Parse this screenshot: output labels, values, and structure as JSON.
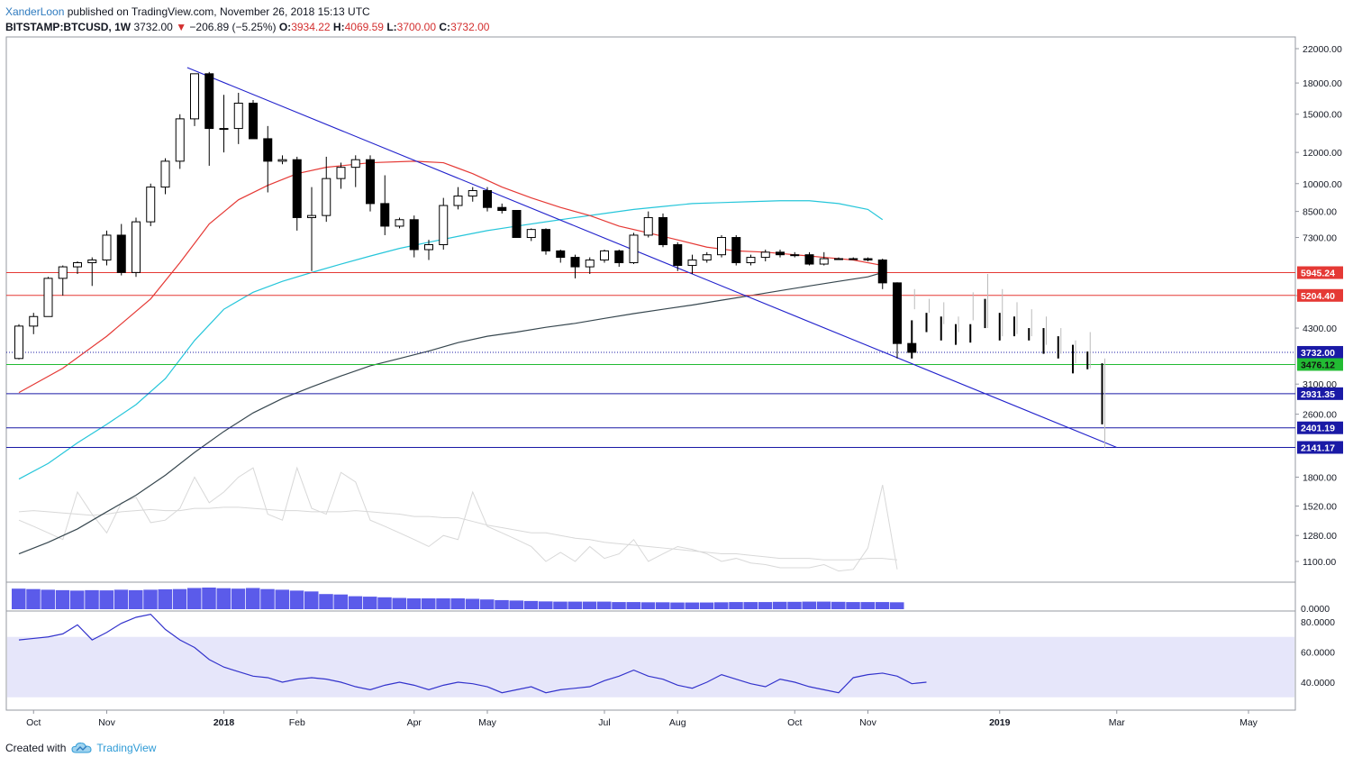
{
  "header": {
    "author": "XanderLoon",
    "published": " published on TradingView.com, November 26, 2018 15:13 UTC",
    "symbol": "BITSTAMP:BTCUSD, 1W",
    "last": "3732.00",
    "change": "−206.89 (−5.25%)",
    "o_label": "O:",
    "o_value": "3934.22",
    "h_label": "H:",
    "h_value": "4069.59",
    "l_label": "L:",
    "l_value": "3700.00",
    "c_label": "C:",
    "c_value": "3732.00"
  },
  "footer": {
    "created_with": "Created with",
    "brand": "TradingView"
  },
  "colors": {
    "down": "#000000",
    "up": "#ffffff",
    "ma_red": "#e53935",
    "ma_cyan": "#26c6da",
    "ma_dark": "#37474f",
    "trend": "#2222cc",
    "level_red": "#e53935",
    "level_green": "#22bb33",
    "level_blue": "#1a1aa6",
    "volume": "#5b5bea",
    "rsi_band": "#e6e6fa",
    "rsi_line": "#3333cc",
    "projection": "#bbbbbb"
  },
  "chart_data": {
    "type": "candlestick",
    "scale": "log",
    "price_ticks": [
      1100,
      1280,
      1520,
      1800,
      2600,
      3100,
      4300,
      5200,
      7300,
      8500,
      10000,
      12000,
      15000,
      18000,
      22000
    ],
    "price_tick_labels": [
      "1100.00",
      "1280.00",
      "1520.00",
      "1800.00",
      "2600.00",
      "3100.00",
      "4300.00",
      "5200.00",
      "7300.00",
      "8500.00",
      "10000.00",
      "12000.00",
      "15000.00",
      "18000.00",
      "22000.00"
    ],
    "x_ticks": [
      {
        "label": "Oct",
        "week": 1,
        "bold": false
      },
      {
        "label": "Nov",
        "week": 6,
        "bold": false
      },
      {
        "label": "2018",
        "week": 14,
        "bold": true
      },
      {
        "label": "Feb",
        "week": 19,
        "bold": false
      },
      {
        "label": "Apr",
        "week": 27,
        "bold": false
      },
      {
        "label": "May",
        "week": 32,
        "bold": false
      },
      {
        "label": "Jul",
        "week": 40,
        "bold": false
      },
      {
        "label": "Aug",
        "week": 45,
        "bold": false
      },
      {
        "label": "Oct",
        "week": 53,
        "bold": false
      },
      {
        "label": "Nov",
        "week": 58,
        "bold": false
      },
      {
        "label": "2019",
        "week": 67,
        "bold": true
      },
      {
        "label": "Mar",
        "week": 75,
        "bold": false
      },
      {
        "label": "May",
        "week": 84,
        "bold": false
      }
    ],
    "candles": [
      [
        3600,
        4400,
        3580,
        4350
      ],
      [
        4350,
        4700,
        4150,
        4600
      ],
      [
        4600,
        5800,
        4600,
        5750
      ],
      [
        5750,
        6200,
        5200,
        6150
      ],
      [
        6150,
        6350,
        5900,
        6300
      ],
      [
        6300,
        6500,
        5500,
        6400
      ],
      [
        6400,
        7600,
        6200,
        7400
      ],
      [
        7400,
        7900,
        5850,
        5950
      ],
      [
        5950,
        8200,
        5800,
        8000
      ],
      [
        8000,
        10000,
        7800,
        9800
      ],
      [
        9800,
        11600,
        9400,
        11400
      ],
      [
        11400,
        15000,
        10900,
        14600
      ],
      [
        14600,
        19000,
        14000,
        19000
      ],
      [
        19000,
        19200,
        11100,
        13800
      ],
      [
        13800,
        16800,
        12000,
        13800
      ],
      [
        13800,
        17000,
        12600,
        16000
      ],
      [
        16000,
        16300,
        13000,
        13000
      ],
      [
        13000,
        14000,
        9500,
        11400
      ],
      [
        11400,
        11800,
        11200,
        11500
      ],
      [
        11500,
        11700,
        7600,
        8200
      ],
      [
        8200,
        9800,
        6000,
        8300
      ],
      [
        8300,
        11700,
        8000,
        10300
      ],
      [
        10300,
        11300,
        9700,
        11000
      ],
      [
        11000,
        11800,
        9800,
        11500
      ],
      [
        11500,
        11800,
        8500,
        8900
      ],
      [
        8900,
        10500,
        7400,
        7800
      ],
      [
        7800,
        8200,
        7700,
        8100
      ],
      [
        8100,
        8300,
        6500,
        6800
      ],
      [
        6800,
        7200,
        6400,
        7000
      ],
      [
        7000,
        9200,
        6800,
        8800
      ],
      [
        8800,
        9800,
        8600,
        9300
      ],
      [
        9300,
        9800,
        9000,
        9600
      ],
      [
        9600,
        9800,
        8500,
        8700
      ],
      [
        8700,
        8900,
        8400,
        8550
      ],
      [
        8550,
        8550,
        7300,
        7300
      ],
      [
        7300,
        7700,
        7150,
        7650
      ],
      [
        7650,
        7700,
        6600,
        6750
      ],
      [
        6750,
        6800,
        6300,
        6500
      ],
      [
        6500,
        6600,
        5750,
        6150
      ],
      [
        6150,
        6500,
        5900,
        6400
      ],
      [
        6400,
        6800,
        6300,
        6750
      ],
      [
        6750,
        6800,
        6150,
        6300
      ],
      [
        6300,
        7500,
        6250,
        7400
      ],
      [
        7400,
        8500,
        7300,
        8200
      ],
      [
        8200,
        8400,
        6900,
        7000
      ],
      [
        7000,
        7100,
        6000,
        6200
      ],
      [
        6200,
        6600,
        5900,
        6400
      ],
      [
        6400,
        6700,
        6300,
        6600
      ],
      [
        6600,
        7400,
        6500,
        7300
      ],
      [
        7300,
        7400,
        6200,
        6300
      ],
      [
        6300,
        6600,
        6200,
        6500
      ],
      [
        6500,
        6800,
        6350,
        6700
      ],
      [
        6700,
        6800,
        6500,
        6600
      ],
      [
        6600,
        6700,
        6500,
        6600
      ],
      [
        6600,
        6700,
        6200,
        6250
      ],
      [
        6250,
        6700,
        6200,
        6450
      ],
      [
        6450,
        6500,
        6400,
        6450
      ],
      [
        6450,
        6500,
        6400,
        6450
      ],
      [
        6450,
        6500,
        6350,
        6400
      ],
      [
        6400,
        6450,
        5400,
        5600
      ],
      [
        5600,
        5620,
        3600,
        3930
      ],
      [
        3930,
        4070,
        3700,
        3732
      ]
    ],
    "projection": [
      [
        4800,
        5400
      ],
      [
        4700,
        5100
      ],
      [
        4400,
        5000
      ],
      [
        4200,
        4600
      ],
      [
        4500,
        5300
      ],
      [
        4300,
        5900
      ],
      [
        4100,
        5400
      ],
      [
        4150,
        5000
      ],
      [
        4100,
        4800
      ],
      [
        3900,
        4600
      ],
      [
        3700,
        4300
      ],
      [
        3500,
        4000
      ],
      [
        3400,
        4200
      ],
      [
        2140,
        3600
      ]
    ],
    "projection_bold": [
      [
        3600,
        4500
      ],
      [
        4200,
        4700
      ],
      [
        4000,
        4600
      ],
      [
        3900,
        4400
      ],
      [
        3950,
        4400
      ],
      [
        4300,
        5100
      ],
      [
        4000,
        4700
      ],
      [
        4100,
        4600
      ],
      [
        4000,
        4300
      ],
      [
        3700,
        4300
      ],
      [
        3600,
        4100
      ],
      [
        3300,
        3900
      ],
      [
        3380,
        3750
      ],
      [
        2450,
        3500
      ]
    ],
    "ma_red": [
      [
        0,
        2950
      ],
      [
        3,
        3400
      ],
      [
        6,
        4100
      ],
      [
        9,
        5100
      ],
      [
        11,
        6300
      ],
      [
        13,
        7900
      ],
      [
        15,
        9100
      ],
      [
        17,
        9900
      ],
      [
        19,
        10600
      ],
      [
        21,
        11000
      ],
      [
        24,
        11300
      ],
      [
        27,
        11400
      ],
      [
        29,
        11300
      ],
      [
        31,
        10600
      ],
      [
        33,
        9800
      ],
      [
        35,
        9200
      ],
      [
        37,
        8700
      ],
      [
        39,
        8300
      ],
      [
        41,
        7800
      ],
      [
        43,
        7500
      ],
      [
        45,
        7200
      ],
      [
        47,
        6900
      ],
      [
        49,
        6750
      ],
      [
        51,
        6700
      ],
      [
        53,
        6600
      ],
      [
        55,
        6500
      ],
      [
        57,
        6400
      ],
      [
        59,
        6200
      ]
    ],
    "ma_cyan": [
      [
        0,
        1780
      ],
      [
        2,
        1950
      ],
      [
        4,
        2200
      ],
      [
        6,
        2450
      ],
      [
        8,
        2750
      ],
      [
        10,
        3200
      ],
      [
        12,
        4000
      ],
      [
        14,
        4800
      ],
      [
        16,
        5300
      ],
      [
        18,
        5650
      ],
      [
        20,
        5950
      ],
      [
        22,
        6250
      ],
      [
        24,
        6550
      ],
      [
        26,
        6850
      ],
      [
        28,
        7100
      ],
      [
        30,
        7350
      ],
      [
        32,
        7600
      ],
      [
        34,
        7800
      ],
      [
        36,
        8000
      ],
      [
        38,
        8200
      ],
      [
        40,
        8400
      ],
      [
        42,
        8600
      ],
      [
        44,
        8750
      ],
      [
        46,
        8900
      ],
      [
        48,
        8950
      ],
      [
        50,
        9000
      ],
      [
        52,
        9050
      ],
      [
        54,
        9050
      ],
      [
        56,
        8900
      ],
      [
        58,
        8600
      ],
      [
        59,
        8100
      ]
    ],
    "ma_dark": [
      [
        0,
        1150
      ],
      [
        2,
        1230
      ],
      [
        4,
        1330
      ],
      [
        6,
        1470
      ],
      [
        8,
        1620
      ],
      [
        10,
        1820
      ],
      [
        12,
        2080
      ],
      [
        14,
        2350
      ],
      [
        16,
        2620
      ],
      [
        18,
        2850
      ],
      [
        20,
        3050
      ],
      [
        22,
        3250
      ],
      [
        24,
        3450
      ],
      [
        26,
        3600
      ],
      [
        28,
        3760
      ],
      [
        30,
        3950
      ],
      [
        32,
        4100
      ],
      [
        34,
        4200
      ],
      [
        36,
        4320
      ],
      [
        38,
        4420
      ],
      [
        40,
        4550
      ],
      [
        42,
        4680
      ],
      [
        44,
        4800
      ],
      [
        46,
        4920
      ],
      [
        48,
        5060
      ],
      [
        50,
        5200
      ],
      [
        52,
        5350
      ],
      [
        54,
        5500
      ],
      [
        56,
        5650
      ],
      [
        58,
        5800
      ],
      [
        59,
        5950
      ]
    ],
    "trendline": [
      [
        11.5,
        19700
      ],
      [
        75,
        2141
      ]
    ],
    "levels": [
      {
        "price": 5945.24,
        "label": "5945.24",
        "color": "#e53935"
      },
      {
        "price": 5204.4,
        "label": "5204.40",
        "color": "#e53935"
      },
      {
        "price": 3732.0,
        "label": "3732.00",
        "color": "#1a1aa6",
        "dotted": true
      },
      {
        "price": 3476.12,
        "label": "3476.12",
        "color": "#22bb33",
        "text": "#111111"
      },
      {
        "price": 2931.35,
        "label": "2931.35",
        "color": "#1a1aa6"
      },
      {
        "price": 2401.19,
        "label": "2401.19",
        "color": "#1a1aa6"
      },
      {
        "price": 2141.17,
        "label": "2141.17",
        "color": "#1a1aa6"
      }
    ],
    "vol_gray_a": [
      1400,
      1350,
      1300,
      1250,
      1650,
      1450,
      1300,
      1550,
      1600,
      1380,
      1400,
      1500,
      1800,
      1550,
      1650,
      1800,
      1900,
      1450,
      1400,
      1900,
      1500,
      1450,
      1850,
      1750,
      1400,
      1350,
      1300,
      1250,
      1200,
      1280,
      1250,
      1650,
      1350,
      1300,
      1250,
      1200,
      1100,
      1160,
      1100,
      1200,
      1120,
      1150,
      1250,
      1100,
      1150,
      1200,
      1180,
      1150,
      1100,
      1120,
      1090,
      1080,
      1060,
      1060,
      1060,
      1080,
      1040,
      1050,
      1190,
      1720,
      1050
    ],
    "vol_gray_b": [
      1470,
      1480,
      1470,
      1460,
      1450,
      1440,
      1450,
      1470,
      1480,
      1490,
      1480,
      1480,
      1500,
      1500,
      1510,
      1510,
      1500,
      1490,
      1480,
      1480,
      1470,
      1470,
      1470,
      1480,
      1470,
      1460,
      1450,
      1430,
      1430,
      1420,
      1420,
      1390,
      1360,
      1340,
      1320,
      1300,
      1300,
      1280,
      1260,
      1250,
      1230,
      1220,
      1210,
      1200,
      1190,
      1180,
      1170,
      1160,
      1150,
      1150,
      1140,
      1130,
      1120,
      1120,
      1120,
      1110,
      1110,
      1110,
      1120,
      1120,
      1110
    ],
    "volume": [
      0.95,
      0.93,
      0.9,
      0.88,
      0.86,
      0.88,
      0.87,
      0.9,
      0.88,
      0.9,
      0.92,
      0.93,
      0.98,
      1,
      0.97,
      0.95,
      0.98,
      0.93,
      0.9,
      0.86,
      0.82,
      0.7,
      0.68,
      0.6,
      0.58,
      0.55,
      0.52,
      0.5,
      0.5,
      0.5,
      0.5,
      0.48,
      0.45,
      0.42,
      0.4,
      0.38,
      0.36,
      0.35,
      0.35,
      0.35,
      0.35,
      0.33,
      0.33,
      0.32,
      0.32,
      0.31,
      0.31,
      0.31,
      0.32,
      0.33,
      0.33,
      0.33,
      0.34,
      0.34,
      0.35,
      0.35,
      0.34,
      0.33,
      0.33,
      0.33,
      0.32
    ],
    "volume_label": "0.0000",
    "rsi": [
      68,
      69,
      70,
      72,
      78,
      68,
      73,
      79,
      83,
      85,
      75,
      68,
      63,
      55,
      50,
      47,
      44,
      43,
      40,
      42,
      43,
      42,
      40,
      37,
      35,
      38,
      40,
      38,
      35,
      38,
      40,
      39,
      37,
      33,
      35,
      37,
      33,
      35,
      36,
      37,
      41,
      44,
      48,
      44,
      42,
      38,
      36,
      40,
      45,
      42,
      39,
      37,
      42,
      40,
      37,
      35,
      33,
      43,
      45,
      46,
      44,
      39,
      40
    ],
    "rsi_ticks": [
      40,
      60,
      80
    ],
    "rsi_tick_labels": [
      "40.0000",
      "60.0000",
      "80.0000"
    ],
    "rsi_band": [
      30,
      70
    ]
  }
}
